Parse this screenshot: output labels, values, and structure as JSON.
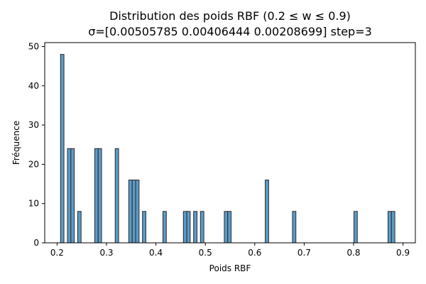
{
  "chart_data": {
    "type": "bar",
    "title": "Distribution des poids RBF (0.2 ≤ w ≤ 0.9)",
    "subtitle": "σ=[0.00505785 0.00406444 0.00208699] step=3",
    "xlabel": "Poids RBF",
    "ylabel": "Fréquence",
    "xlim": [
      0.175,
      0.925
    ],
    "ylim": [
      0,
      51
    ],
    "xticks": [
      0.2,
      0.3,
      0.4,
      0.5,
      0.6,
      0.7,
      0.8,
      0.9
    ],
    "xtick_labels": [
      "0.2",
      "0.3",
      "0.4",
      "0.5",
      "0.6",
      "0.7",
      "0.8",
      "0.9"
    ],
    "yticks": [
      0,
      10,
      20,
      30,
      40,
      50
    ],
    "ytick_labels": [
      "0",
      "10",
      "20",
      "30",
      "40",
      "50"
    ],
    "grid": false,
    "bin_width": 0.0069,
    "bin_edges_left": [
      0.207,
      0.221,
      0.2279,
      0.2417,
      0.2762,
      0.2831,
      0.3176,
      0.345,
      0.3521,
      0.359,
      0.3728,
      0.4142,
      0.4556,
      0.4625,
      0.4763,
      0.4901,
      0.5384,
      0.5453,
      0.6212,
      0.6764,
      0.8007,
      0.8697,
      0.8766
    ],
    "values": [
      48,
      24,
      24,
      8,
      24,
      24,
      24,
      16,
      16,
      16,
      8,
      8,
      8,
      8,
      8,
      8,
      8,
      8,
      16,
      8,
      8,
      8,
      8
    ],
    "bar_color": "#5b9bc8",
    "edge_color": "#2b2b2b"
  }
}
